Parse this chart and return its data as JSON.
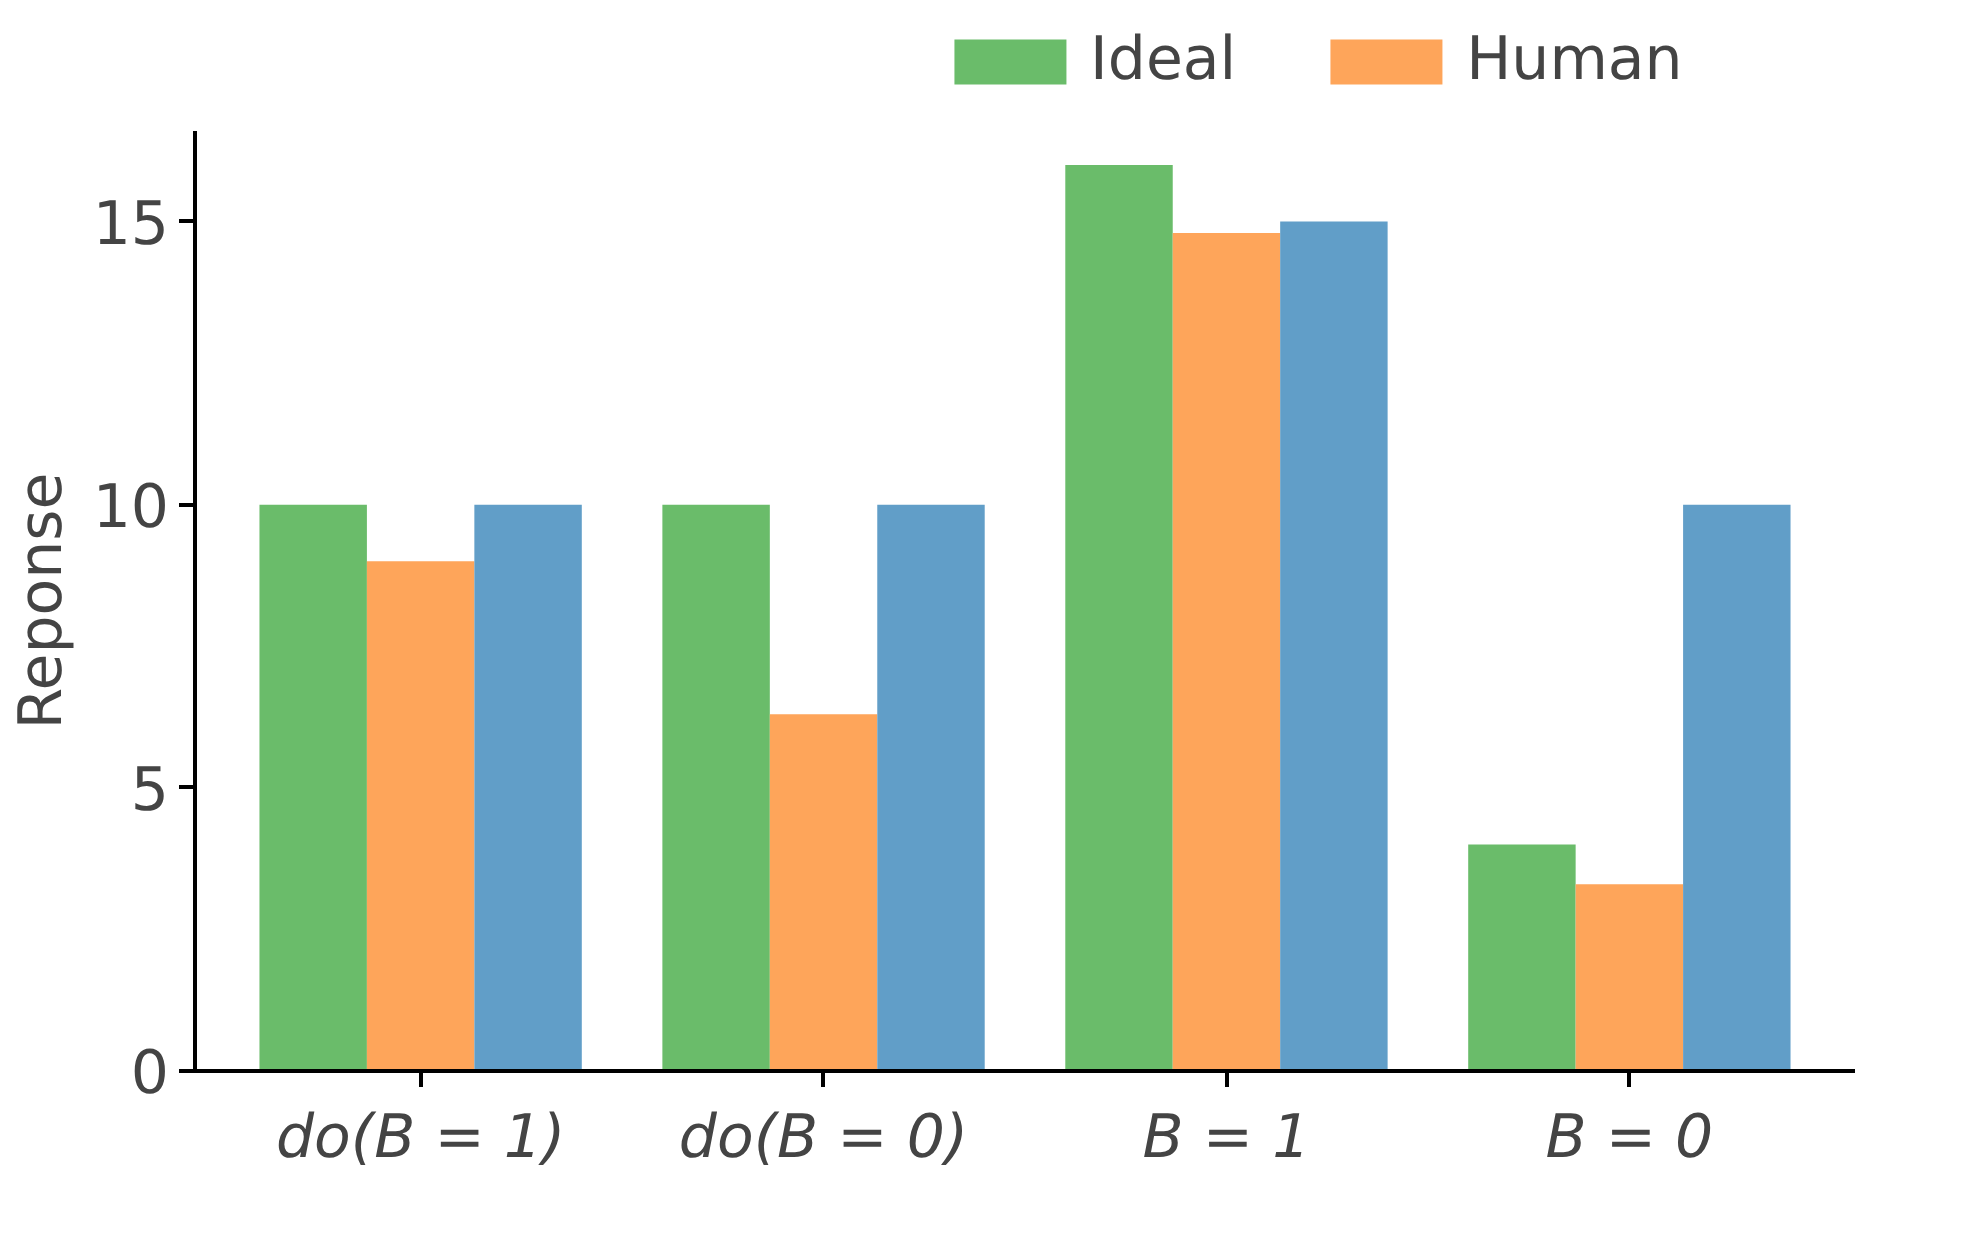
{
  "chart_data": {
    "type": "bar",
    "ylabel": "Reponse",
    "categories": [
      "do(B = 1)",
      "do(B = 0)",
      "B = 1",
      "B = 0"
    ],
    "series": [
      {
        "name": "Ideal",
        "color": "#6abc6a",
        "values": [
          10,
          10,
          16,
          4
        ]
      },
      {
        "name": "Human",
        "color": "#fea55a",
        "values": [
          9,
          6.3,
          14.8,
          3.3
        ]
      },
      {
        "color": "#619ec8",
        "values": [
          10,
          10,
          15,
          10
        ]
      }
    ],
    "ylim": [
      0,
      16.6
    ],
    "yticks": [
      0,
      5,
      10,
      15
    ],
    "grid": false,
    "legend": "top"
  }
}
